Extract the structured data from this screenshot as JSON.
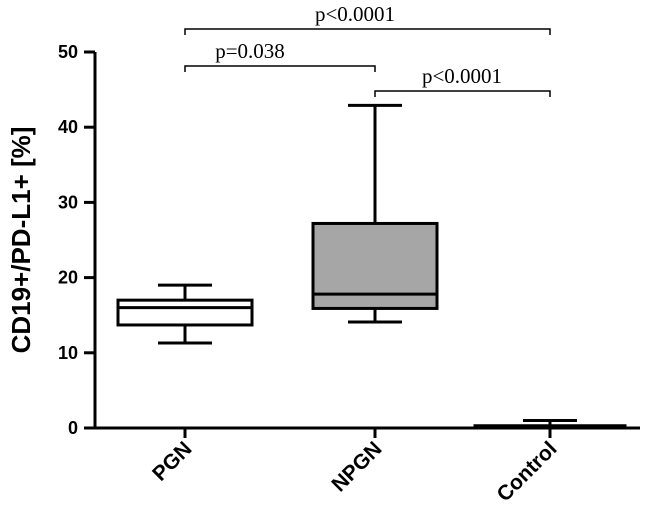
{
  "chart_data": {
    "type": "box",
    "ylabel": "CD19+/PD-L1+ [%]",
    "xlabel": "",
    "ylim": [
      0,
      50
    ],
    "yticks": [
      "0",
      "10",
      "20",
      "30",
      "40",
      "50"
    ],
    "categories": [
      "PGN",
      "NPGN",
      "Control"
    ],
    "boxes": [
      {
        "category": "PGN",
        "min": 11.3,
        "q1": 13.7,
        "median": 16.0,
        "q3": 17.0,
        "max": 19.0,
        "fill": "#ffffff"
      },
      {
        "category": "NPGN",
        "min": 14.1,
        "q1": 15.9,
        "median": 17.8,
        "q3": 27.2,
        "max": 42.9,
        "fill": "#a6a6a6"
      },
      {
        "category": "Control",
        "min": 0.0,
        "q1": 0.1,
        "median": 0.2,
        "q3": 0.3,
        "max": 1.0,
        "fill": "#ffffff"
      }
    ],
    "comparisons": [
      {
        "from": "PGN",
        "to": "NPGN",
        "label": "p=0.038"
      },
      {
        "from": "NPGN",
        "to": "Control",
        "label": "p<0.0001"
      },
      {
        "from": "PGN",
        "to": "Control",
        "label": "p<0.0001"
      }
    ],
    "grid": false,
    "colors": {
      "axis": "#000000",
      "npgn_box": "#a6a6a6"
    }
  }
}
